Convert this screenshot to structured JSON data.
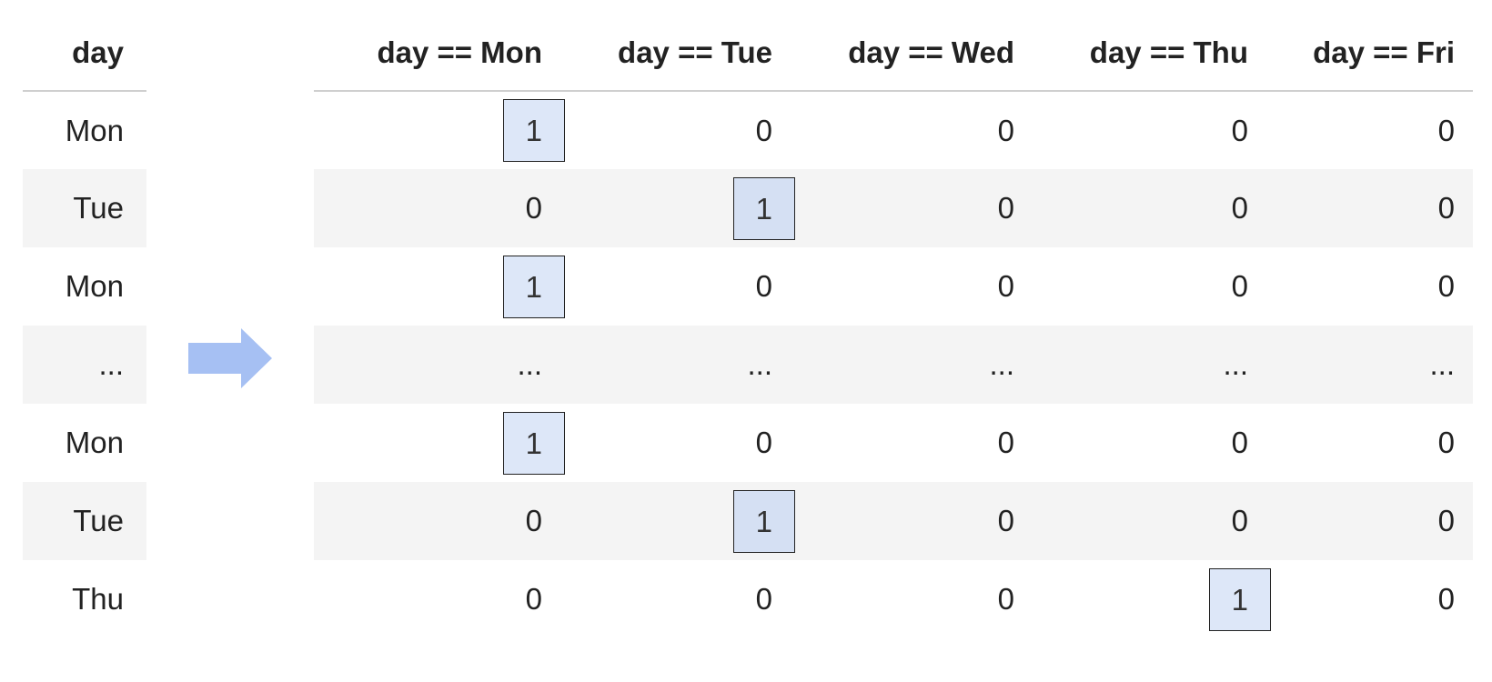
{
  "input_table": {
    "header": "day",
    "rows": [
      "Mon",
      "Tue",
      "Mon",
      "...",
      "Mon",
      "Tue",
      "Thu"
    ]
  },
  "arrow": {
    "icon": "arrow-right-icon",
    "color": "#a6c0f3"
  },
  "output_table": {
    "headers": [
      "day == Mon",
      "day == Tue",
      "day == Wed",
      "day == Thu",
      "day == Fri"
    ],
    "rows": [
      [
        "1",
        "0",
        "0",
        "0",
        "0"
      ],
      [
        "0",
        "1",
        "0",
        "0",
        "0"
      ],
      [
        "1",
        "0",
        "0",
        "0",
        "0"
      ],
      [
        "...",
        "...",
        "...",
        "...",
        "..."
      ],
      [
        "1",
        "0",
        "0",
        "0",
        "0"
      ],
      [
        "0",
        "1",
        "0",
        "0",
        "0"
      ],
      [
        "0",
        "0",
        "0",
        "1",
        "0"
      ]
    ],
    "highlight_color": "#dde7f8",
    "stripe_color": "#f4f4f4"
  }
}
